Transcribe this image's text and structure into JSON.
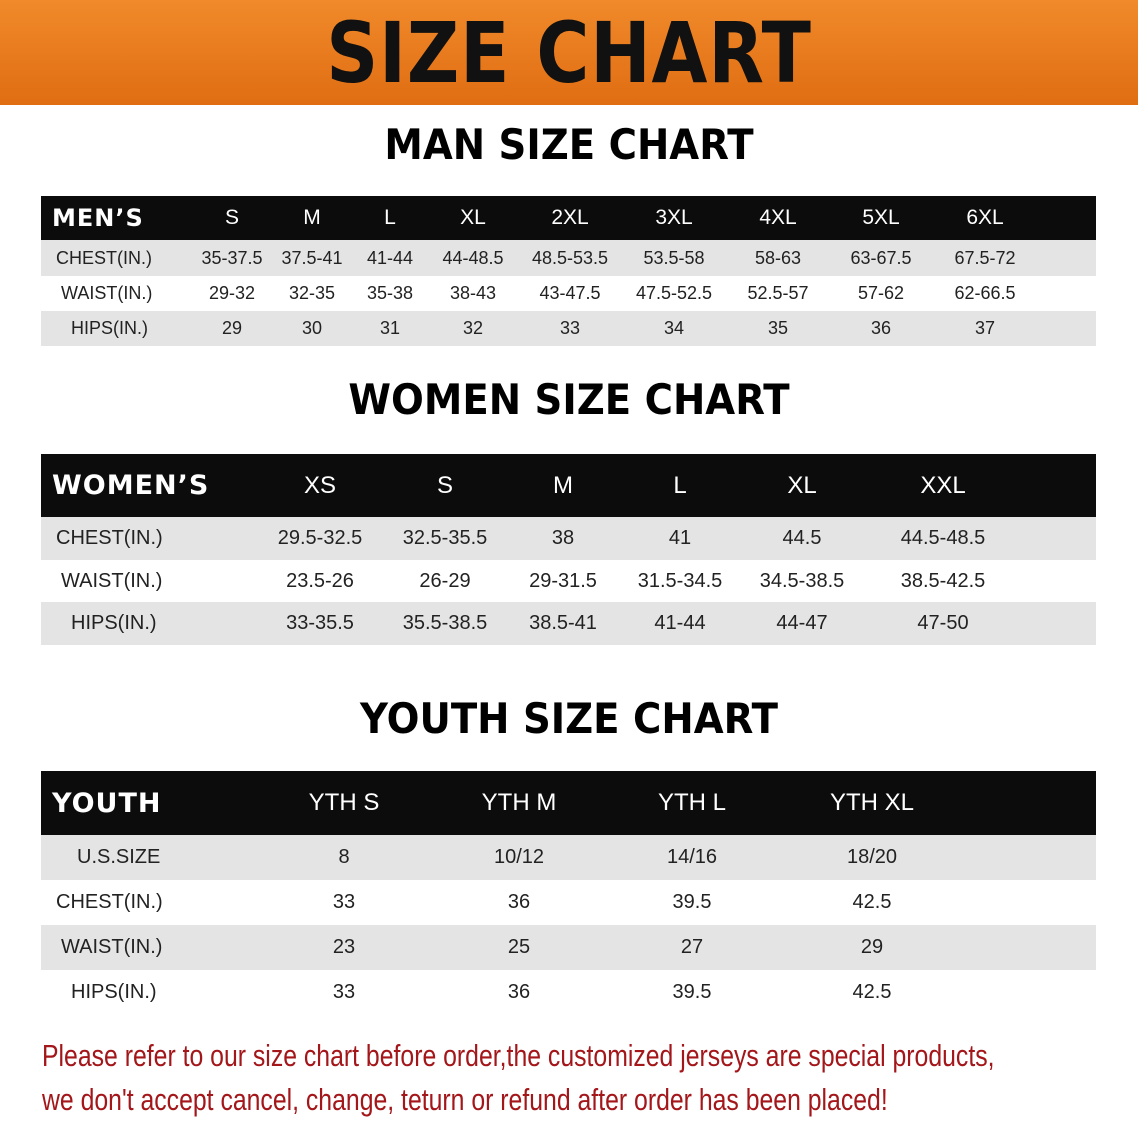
{
  "banner_title": "SIZE CHART",
  "colors": {
    "banner": "#e8781c",
    "header_row": "#0c0c0c",
    "shaded_row": "#e4e4e4",
    "note_text": "#a3161a"
  },
  "men": {
    "title": "MAN SIZE CHART",
    "corner": "MEN’S",
    "sizes": [
      "S",
      "M",
      "L",
      "XL",
      "2XL",
      "3XL",
      "4XL",
      "5XL",
      "6XL"
    ],
    "rows": [
      {
        "label": "CHEST(IN.)",
        "values": [
          "35-37.5",
          "37.5-41",
          "41-44",
          "44-48.5",
          "48.5-53.5",
          "53.5-58",
          "58-63",
          "63-67.5",
          "67.5-72"
        ]
      },
      {
        "label": "WAIST(IN.)",
        "values": [
          "29-32",
          "32-35",
          "35-38",
          "38-43",
          "43-47.5",
          "47.5-52.5",
          "52.5-57",
          "57-62",
          "62-66.5"
        ]
      },
      {
        "label": "HIPS(IN.)",
        "values": [
          "29",
          "30",
          "31",
          "32",
          "33",
          "34",
          "35",
          "36",
          "37"
        ]
      }
    ]
  },
  "women": {
    "title": "WOMEN SIZE CHART",
    "corner": "WOMEN’S",
    "sizes": [
      "XS",
      "S",
      "M",
      "L",
      "XL",
      "XXL"
    ],
    "rows": [
      {
        "label": "CHEST(IN.)",
        "values": [
          "29.5-32.5",
          "32.5-35.5",
          "38",
          "41",
          "44.5",
          "44.5-48.5"
        ]
      },
      {
        "label": "WAIST(IN.)",
        "values": [
          "23.5-26",
          "26-29",
          "29-31.5",
          "31.5-34.5",
          "34.5-38.5",
          "38.5-42.5"
        ]
      },
      {
        "label": "HIPS(IN.)",
        "values": [
          "33-35.5",
          "35.5-38.5",
          "38.5-41",
          "41-44",
          "44-47",
          "47-50"
        ]
      }
    ]
  },
  "youth": {
    "title": "YOUTH SIZE CHART",
    "corner": "YOUTH",
    "sizes": [
      "YTH S",
      "YTH M",
      "YTH L",
      "YTH XL"
    ],
    "rows": [
      {
        "label": "U.S.SIZE",
        "values": [
          "8",
          "10/12",
          "14/16",
          "18/20"
        ]
      },
      {
        "label": "CHEST(IN.)",
        "values": [
          "33",
          "36",
          "39.5",
          "42.5"
        ]
      },
      {
        "label": "WAIST(IN.)",
        "values": [
          "23",
          "25",
          "27",
          "29"
        ]
      },
      {
        "label": "HIPS(IN.)",
        "values": [
          "33",
          "36",
          "39.5",
          "42.5"
        ]
      }
    ]
  },
  "note": {
    "line1": "Please refer to our size chart before order,the customized jerseys are special products,",
    "line2": "we don't accept cancel, change, teturn or refund after order has been placed!"
  }
}
